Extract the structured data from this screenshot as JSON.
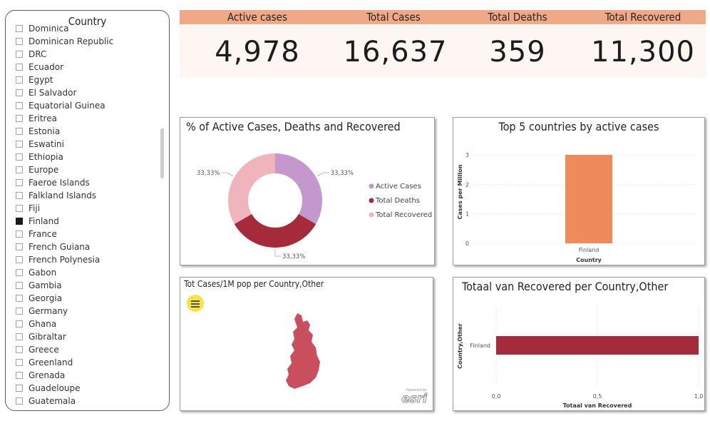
{
  "slicer": {
    "title": "Country",
    "items": [
      {
        "label": "Dominica",
        "checked": false
      },
      {
        "label": "Dominican Republic",
        "checked": false
      },
      {
        "label": "DRC",
        "checked": false
      },
      {
        "label": "Ecuador",
        "checked": false
      },
      {
        "label": "Egypt",
        "checked": false
      },
      {
        "label": "El Salvador",
        "checked": false
      },
      {
        "label": "Equatorial Guinea",
        "checked": false
      },
      {
        "label": "Eritrea",
        "checked": false
      },
      {
        "label": "Estonia",
        "checked": false
      },
      {
        "label": "Eswatini",
        "checked": false
      },
      {
        "label": "Ethiopia",
        "checked": false
      },
      {
        "label": "Europe",
        "checked": false
      },
      {
        "label": "Faeroe Islands",
        "checked": false
      },
      {
        "label": "Falkland Islands",
        "checked": false
      },
      {
        "label": "Fiji",
        "checked": false
      },
      {
        "label": "Finland",
        "checked": true
      },
      {
        "label": "France",
        "checked": false
      },
      {
        "label": "French Guiana",
        "checked": false
      },
      {
        "label": "French Polynesia",
        "checked": false
      },
      {
        "label": "Gabon",
        "checked": false
      },
      {
        "label": "Gambia",
        "checked": false
      },
      {
        "label": "Georgia",
        "checked": false
      },
      {
        "label": "Germany",
        "checked": false
      },
      {
        "label": "Ghana",
        "checked": false
      },
      {
        "label": "Gibraltar",
        "checked": false
      },
      {
        "label": "Greece",
        "checked": false
      },
      {
        "label": "Greenland",
        "checked": false
      },
      {
        "label": "Grenada",
        "checked": false
      },
      {
        "label": "Guadeloupe",
        "checked": false
      },
      {
        "label": "Guatemala",
        "checked": false
      }
    ]
  },
  "kpis": [
    {
      "label": "Active cases",
      "value": "4,978"
    },
    {
      "label": "Total Cases",
      "value": "16,637"
    },
    {
      "label": "Total Deaths",
      "value": "359"
    },
    {
      "label": "Total Recovered",
      "value": "11,300"
    }
  ],
  "colors": {
    "kpi_header": "#f0a988",
    "active": "#c498cc",
    "deaths": "#a52a3a",
    "recovered": "#f0b5bc",
    "bar_orange": "#ef8a5a",
    "bar_red": "#a52a3a",
    "map_fill": "#c94f5f",
    "map_button": "#f8e24a"
  },
  "donut": {
    "title": "% of Active Cases, Deaths and Recovered",
    "chart_data": {
      "type": "pie",
      "series": [
        {
          "name": "Active Cases",
          "value": 33.33,
          "label": "33,33%"
        },
        {
          "name": "Total Deaths",
          "value": 33.33,
          "label": "33,33%"
        },
        {
          "name": "Total Recovered",
          "value": 33.33,
          "label": "33,33%"
        }
      ],
      "legend": "right"
    }
  },
  "top5": {
    "title": "Top 5 countries by active cases",
    "chart_data": {
      "type": "bar",
      "categories": [
        "Finland"
      ],
      "values": [
        3
      ],
      "xlabel": "Country",
      "ylabel": "Cases per Million",
      "ylim": [
        0,
        3
      ],
      "yticks": [
        "0",
        "1",
        "2",
        "3"
      ],
      "grid": true
    }
  },
  "map": {
    "title": "Tot Cases/1M pop per Country,Other",
    "attribution": "esri",
    "attribution_small": "Powered by"
  },
  "recovered": {
    "title": "Totaal van Recovered per Country,Other",
    "chart_data": {
      "type": "bar",
      "orientation": "horizontal",
      "categories": [
        "Finland"
      ],
      "values": [
        1.0
      ],
      "xlabel": "Totaal van Recovered",
      "ylabel": "Country,Other",
      "xlim": [
        0,
        1
      ],
      "xticks": [
        "0,0",
        "0,5",
        "1,0"
      ],
      "grid": true
    }
  }
}
